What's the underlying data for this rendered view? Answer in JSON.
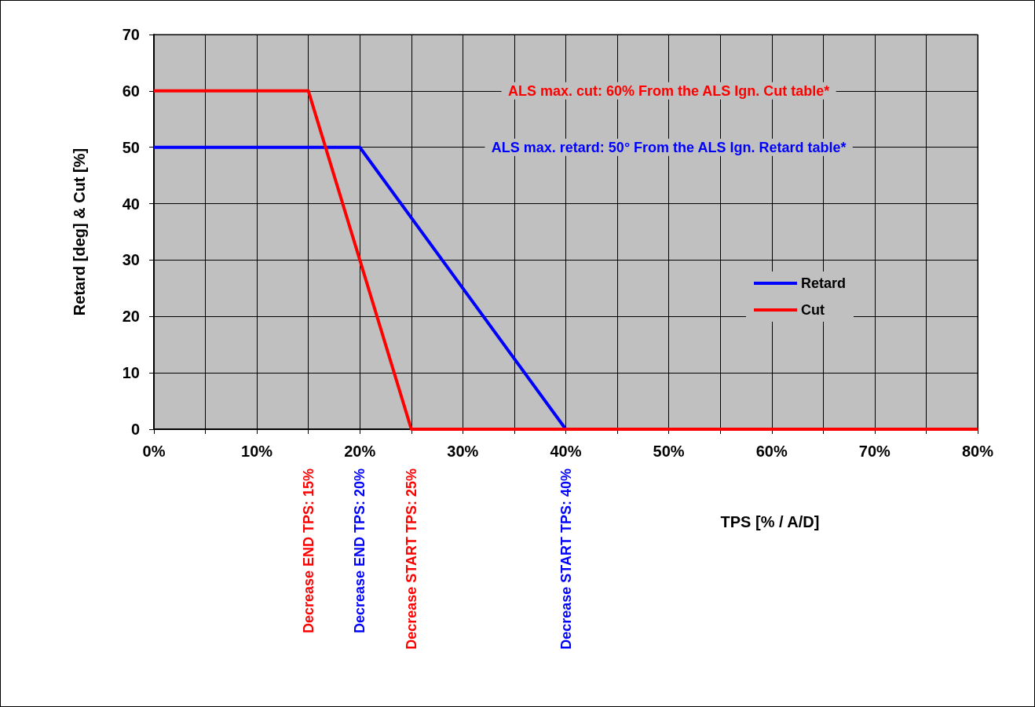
{
  "chart_data": {
    "type": "line",
    "xlabel": "TPS [% / A/D]",
    "ylabel": "Retard [deg] & Cut [%]",
    "series": [
      {
        "name": "Retard",
        "color": "#0000ff",
        "x": [
          0,
          20,
          40,
          80
        ],
        "values": [
          50,
          50,
          0,
          0
        ]
      },
      {
        "name": "Cut",
        "color": "#ff0000",
        "x": [
          0,
          15,
          25,
          80
        ],
        "values": [
          60,
          60,
          0,
          0
        ]
      }
    ],
    "xlim": [
      0,
      80
    ],
    "xticks": [
      {
        "value": 0,
        "label": "0%"
      },
      {
        "value": 5,
        "label": null
      },
      {
        "value": 10,
        "label": "10%"
      },
      {
        "value": 15,
        "label": null
      },
      {
        "value": 20,
        "label": "20%"
      },
      {
        "value": 25,
        "label": null
      },
      {
        "value": 30,
        "label": "30%"
      },
      {
        "value": 35,
        "label": null
      },
      {
        "value": 40,
        "label": "40%"
      },
      {
        "value": 45,
        "label": null
      },
      {
        "value": 50,
        "label": "50%"
      },
      {
        "value": 55,
        "label": null
      },
      {
        "value": 60,
        "label": "60%"
      },
      {
        "value": 65,
        "label": null
      },
      {
        "value": 70,
        "label": "70%"
      },
      {
        "value": 75,
        "label": null
      },
      {
        "value": 80,
        "label": "80%"
      }
    ],
    "ylim": [
      0,
      70
    ],
    "yticks": [
      0,
      10,
      20,
      30,
      40,
      50,
      60,
      70
    ],
    "grid": true,
    "legend": "right",
    "marker": "none",
    "line_style": "solid",
    "annotations": [
      "ALS max. cut: 60% From the ALS Ign. Cut table*",
      "ALS max. retard: 50° From the ALS Ign. Retard table*",
      "Decrease END TPS: 15%",
      "Decrease END TPS: 20%",
      "Decrease START TPS: 25%",
      "Decrease START TPS: 40%"
    ]
  }
}
